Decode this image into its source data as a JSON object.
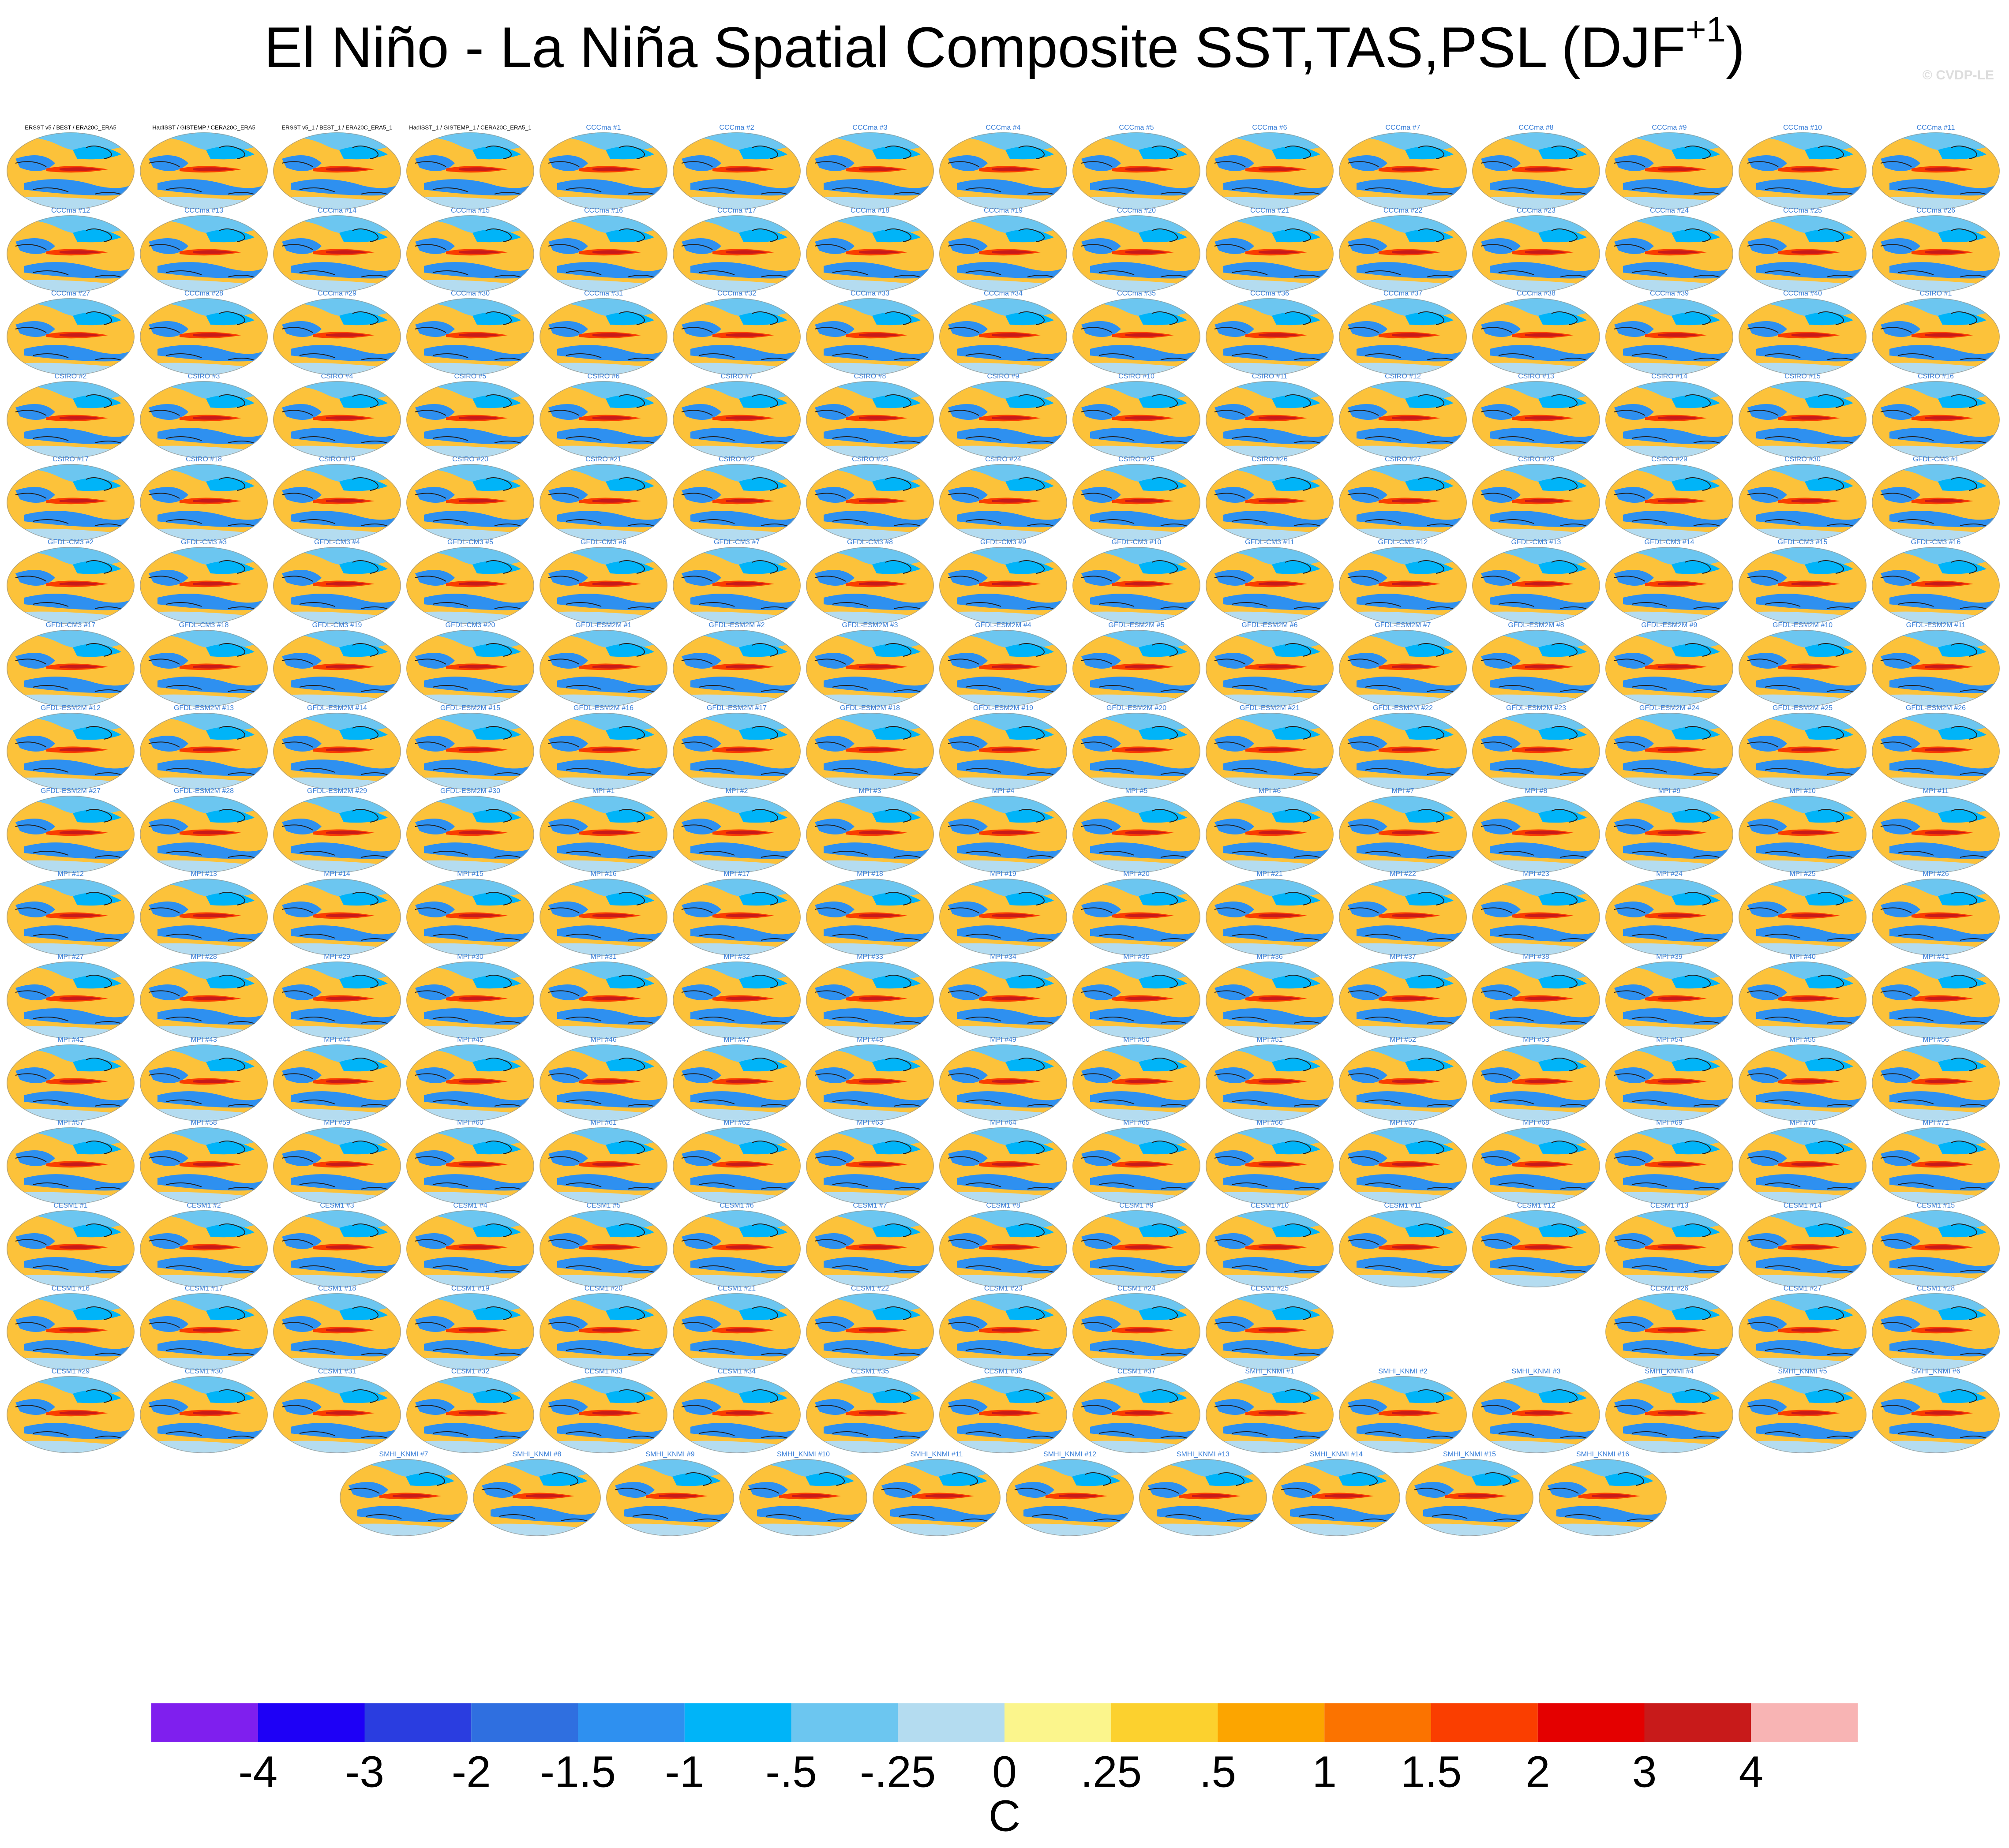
{
  "chart_data": {
    "type": "map-composite",
    "title": "El Niño - La Niña Spatial Composite SST,TAS,PSL (DJF",
    "title_superscript": "+1",
    "title_end": ")",
    "watermark": "© CVDP-LE",
    "colorbar_label": "C",
    "colorbar_colors": [
      "#7f1fee",
      "#1e00f6",
      "#2a3de0",
      "#2f6fe0",
      "#2e90f0",
      "#00b4f8",
      "#6cc6f0",
      "#b4dcf0",
      "#fbf58c",
      "#fcd12e",
      "#fca500",
      "#fb7300",
      "#fa3e00",
      "#e40000",
      "#c81a1a",
      "#f8b4b4"
    ],
    "colorbar_ticks": [
      -4,
      -3,
      -2,
      {
        "value": -1.5,
        "label": "-1.5"
      },
      -1,
      {
        "value": -0.5,
        "label": "-.5"
      },
      {
        "value": -0.25,
        "label": "-.25"
      },
      0,
      {
        "value": 0.25,
        "label": ".25"
      },
      {
        "value": 0.5,
        "label": ".5"
      },
      1,
      {
        "value": 1.5,
        "label": "1.5"
      },
      2,
      3,
      4
    ],
    "panels": [
      [
        "ERSST v5 / BEST / ERA20C_ERA5",
        "HadISST / GISTEMP / CERA20C_ERA5",
        "ERSST v5_1 / BEST_1 / ERA20C_ERA5_1",
        "HadISST_1 / GISTEMP_1 / CERA20C_ERA5_1",
        "CCCma #1",
        "CCCma #2",
        "CCCma #3",
        "CCCma #4",
        "CCCma #5",
        "CCCma #6",
        "CCCma #7",
        "CCCma #8",
        "CCCma #9",
        "CCCma #10",
        "CCCma #11"
      ],
      [
        "CCCma #12",
        "CCCma #13",
        "CCCma #14",
        "CCCma #15",
        "CCCma #16",
        "CCCma #17",
        "CCCma #18",
        "CCCma #19",
        "CCCma #20",
        "CCCma #21",
        "CCCma #22",
        "CCCma #23",
        "CCCma #24",
        "CCCma #25",
        "CCCma #26"
      ],
      [
        "CCCma #27",
        "CCCma #28",
        "CCCma #29",
        "CCCma #30",
        "CCCma #31",
        "CCCma #32",
        "CCCma #33",
        "CCCma #34",
        "CCCma #35",
        "CCCma #36",
        "CCCma #37",
        "CCCma #38",
        "CCCma #39",
        "CCCma #40",
        "CSIRO #1"
      ],
      [
        "CSIRO #2",
        "CSIRO #3",
        "CSIRO #4",
        "CSIRO #5",
        "CSIRO #6",
        "CSIRO #7",
        "CSIRO #8",
        "CSIRO #9",
        "CSIRO #10",
        "CSIRO #11",
        "CSIRO #12",
        "CSIRO #13",
        "CSIRO #14",
        "CSIRO #15",
        "CSIRO #16"
      ],
      [
        "CSIRO #17",
        "CSIRO #18",
        "CSIRO #19",
        "CSIRO #20",
        "CSIRO #21",
        "CSIRO #22",
        "CSIRO #23",
        "CSIRO #24",
        "CSIRO #25",
        "CSIRO #26",
        "CSIRO #27",
        "CSIRO #28",
        "CSIRO #29",
        "CSIRO #30",
        "GFDL-CM3 #1"
      ],
      [
        "GFDL-CM3 #2",
        "GFDL-CM3 #3",
        "GFDL-CM3 #4",
        "GFDL-CM3 #5",
        "GFDL-CM3 #6",
        "GFDL-CM3 #7",
        "GFDL-CM3 #8",
        "GFDL-CM3 #9",
        "GFDL-CM3 #10",
        "GFDL-CM3 #11",
        "GFDL-CM3 #12",
        "GFDL-CM3 #13",
        "GFDL-CM3 #14",
        "GFDL-CM3 #15",
        "GFDL-CM3 #16"
      ],
      [
        "GFDL-CM3 #17",
        "GFDL-CM3 #18",
        "GFDL-CM3 #19",
        "GFDL-CM3 #20",
        "GFDL-ESM2M #1",
        "GFDL-ESM2M #2",
        "GFDL-ESM2M #3",
        "GFDL-ESM2M #4",
        "GFDL-ESM2M #5",
        "GFDL-ESM2M #6",
        "GFDL-ESM2M #7",
        "GFDL-ESM2M #8",
        "GFDL-ESM2M #9",
        "GFDL-ESM2M #10",
        "GFDL-ESM2M #11"
      ],
      [
        "GFDL-ESM2M #12",
        "GFDL-ESM2M #13",
        "GFDL-ESM2M #14",
        "GFDL-ESM2M #15",
        "GFDL-ESM2M #16",
        "GFDL-ESM2M #17",
        "GFDL-ESM2M #18",
        "GFDL-ESM2M #19",
        "GFDL-ESM2M #20",
        "GFDL-ESM2M #21",
        "GFDL-ESM2M #22",
        "GFDL-ESM2M #23",
        "GFDL-ESM2M #24",
        "GFDL-ESM2M #25",
        "GFDL-ESM2M #26"
      ],
      [
        "GFDL-ESM2M #27",
        "GFDL-ESM2M #28",
        "GFDL-ESM2M #29",
        "GFDL-ESM2M #30",
        "MPI #1",
        "MPI #2",
        "MPI #3",
        "MPI #4",
        "MPI #5",
        "MPI #6",
        "MPI #7",
        "MPI #8",
        "MPI #9",
        "MPI #10",
        "MPI #11"
      ],
      [
        "MPI #12",
        "MPI #13",
        "MPI #14",
        "MPI #15",
        "MPI #16",
        "MPI #17",
        "MPI #18",
        "MPI #19",
        "MPI #20",
        "MPI #21",
        "MPI #22",
        "MPI #23",
        "MPI #24",
        "MPI #25",
        "MPI #26"
      ],
      [
        "MPI #27",
        "MPI #28",
        "MPI #29",
        "MPI #30",
        "MPI #31",
        "MPI #32",
        "MPI #33",
        "MPI #34",
        "MPI #35",
        "MPI #36",
        "MPI #37",
        "MPI #38",
        "MPI #39",
        "MPI #40",
        "MPI #41"
      ],
      [
        "MPI #42",
        "MPI #43",
        "MPI #44",
        "MPI #45",
        "MPI #46",
        "MPI #47",
        "MPI #48",
        "MPI #49",
        "MPI #50",
        "MPI #51",
        "MPI #52",
        "MPI #53",
        "MPI #54",
        "MPI #55",
        "MPI #56"
      ],
      [
        "MPI #57",
        "MPI #58",
        "MPI #59",
        "MPI #60",
        "MPI #61",
        "MPI #62",
        "MPI #63",
        "MPI #64",
        "MPI #65",
        "MPI #66",
        "MPI #67",
        "MPI #68",
        "MPI #69",
        "MPI #70",
        "MPI #71"
      ],
      [
        "CESM1 #1",
        "CESM1 #2",
        "CESM1 #3",
        "CESM1 #4",
        "CESM1 #5",
        "CESM1 #6",
        "CESM1 #7",
        "CESM1 #8",
        "CESM1 #9",
        "CESM1 #10",
        "CESM1 #11",
        "CESM1 #12",
        "CESM1 #13",
        "CESM1 #14",
        "CESM1 #15"
      ],
      [
        "CESM1 #16",
        "CESM1 #17",
        "CESM1 #18",
        "CESM1 #19",
        "CESM1 #20",
        "CESM1 #21",
        "CESM1 #22",
        "CESM1 #23",
        "CESM1 #24",
        "CESM1 #25",
        "CESM1 #26",
        "CESM1 #27",
        "CESM1 #28"
      ],
      [
        "CESM1 #29",
        "CESM1 #30",
        "CESM1 #31",
        "CESM1 #32",
        "CESM1 #33",
        "CESM1 #34",
        "CESM1 #35",
        "CESM1 #36",
        "CESM1 #37",
        "SMHI_KNMI #1",
        "SMHI_KNMI #2",
        "SMHI_KNMI #3",
        "SMHI_KNMI #4",
        "SMHI_KNMI #5",
        "SMHI_KNMI #6"
      ],
      [
        "SMHI_KNMI #7",
        "SMHI_KNMI #8",
        "SMHI_KNMI #9",
        "SMHI_KNMI #10",
        "SMHI_KNMI #11",
        "SMHI_KNMI #12",
        "SMHI_KNMI #13",
        "SMHI_KNMI #14",
        "SMHI_KNMI #15",
        "SMHI_KNMI #16"
      ]
    ]
  }
}
